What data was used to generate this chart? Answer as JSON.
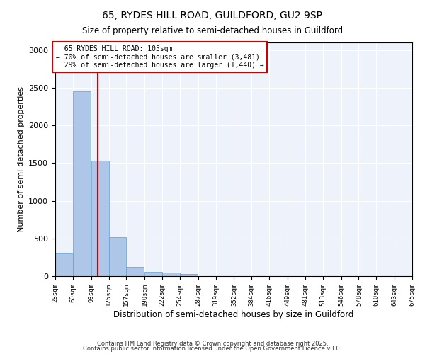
{
  "title": "65, RYDES HILL ROAD, GUILDFORD, GU2 9SP",
  "subtitle": "Size of property relative to semi-detached houses in Guildford",
  "xlabel": "Distribution of semi-detached houses by size in Guildford",
  "ylabel": "Number of semi-detached properties",
  "bin_edges": [
    28,
    60,
    93,
    125,
    157,
    190,
    222,
    254,
    287,
    319,
    352,
    384,
    416,
    449,
    481,
    513,
    546,
    578,
    610,
    643,
    675
  ],
  "bar_heights": [
    300,
    2450,
    1530,
    520,
    120,
    60,
    50,
    30,
    0,
    0,
    0,
    0,
    0,
    0,
    0,
    0,
    0,
    0,
    0,
    0
  ],
  "bar_color": "#aec6e8",
  "bar_edgecolor": "#5a9fd4",
  "property_size": 105,
  "property_label": "65 RYDES HILL ROAD: 105sqm",
  "pct_smaller": "70%",
  "num_smaller": "3,481",
  "pct_larger": "29%",
  "num_larger": "1,440",
  "redline_color": "#cc0000",
  "annotation_box_edgecolor": "#cc0000",
  "annotation_box_facecolor": "#ffffff",
  "ylim": [
    0,
    3100
  ],
  "background_color": "#eef3fb",
  "footer1": "Contains HM Land Registry data © Crown copyright and database right 2025.",
  "footer2": "Contains public sector information licensed under the Open Government Licence v3.0.",
  "tick_labels": [
    "28sqm",
    "60sqm",
    "93sqm",
    "125sqm",
    "157sqm",
    "190sqm",
    "222sqm",
    "254sqm",
    "287sqm",
    "319sqm",
    "352sqm",
    "384sqm",
    "416sqm",
    "449sqm",
    "481sqm",
    "513sqm",
    "546sqm",
    "578sqm",
    "610sqm",
    "643sqm",
    "675sqm"
  ]
}
